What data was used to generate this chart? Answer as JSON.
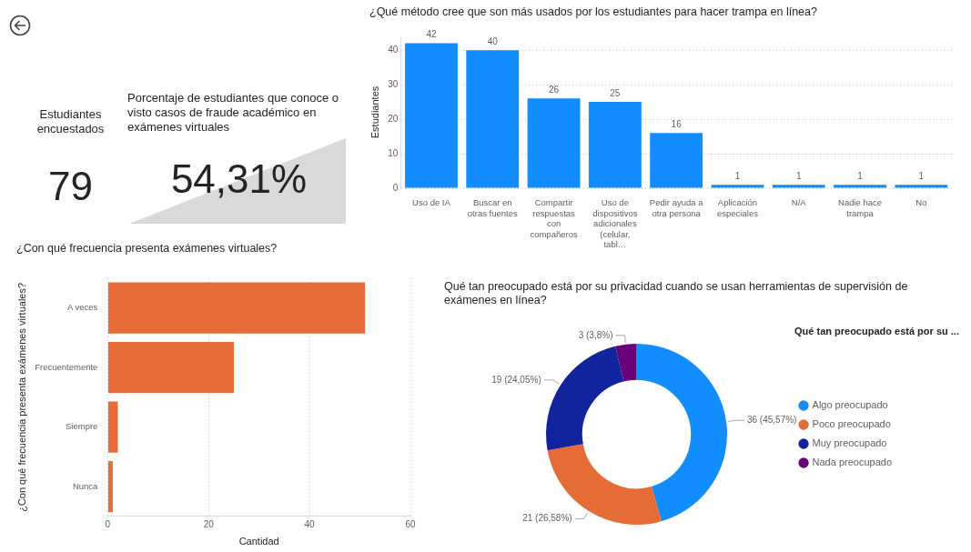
{
  "chart_data": [
    {
      "type": "other",
      "title": "Estudiantes encuestados",
      "values": [
        79
      ],
      "data_labels": true
    },
    {
      "type": "other",
      "title": "Porcentaje de estudiantes que conoce o visto casos de fraude académico en exámenes virtuales",
      "values": [
        54.31
      ],
      "value_labels": [
        "54,31%"
      ]
    },
    {
      "type": "bar",
      "title": "¿Qué método cree que son más usados por los estudiantes para hacer trampa en línea?",
      "ylabel": "Estudiantes",
      "categories": [
        "Uso de IA",
        "Buscar en otras fuentes",
        "Compartir respuestas con compañeros",
        "Uso de dispositivos adicionales (celular, tabl…",
        "Pedir ayuda a otra persona",
        "Aplicación especiales",
        "N/A",
        "Nadie hace trampa",
        "No"
      ],
      "values": [
        42,
        40,
        26,
        25,
        16,
        1,
        1,
        1,
        1
      ],
      "color": "#118dff",
      "ylim": [
        0,
        44
      ],
      "yticks": [
        0,
        10,
        20,
        30,
        40
      ],
      "grid": "y",
      "data_labels": true,
      "legend": false
    },
    {
      "type": "bar",
      "orientation": "horizontal",
      "title": "¿Con qué frecuencia presenta exámenes virtuales?",
      "xlabel": "Cantidad",
      "ylabel": "¿Con qué frecuencia presenta exámenes virtuales?",
      "categories": [
        "A veces",
        "Frecuentemente",
        "Siempre",
        "Nunca"
      ],
      "values": [
        51,
        25,
        2,
        1
      ],
      "color": "#e66c37",
      "xlim": [
        0,
        60
      ],
      "xticks": [
        0,
        20,
        40,
        60
      ],
      "grid": "x",
      "legend": false
    },
    {
      "type": "donut",
      "title": "Qué tan preocupado está por su privacidad cuando se usan herramientas de supervisión de exámenes en línea?",
      "legend_title": "Qué tan preocupado está por su ...",
      "legend": "right",
      "categories": [
        "Algo preocupado",
        "Poco preocupado",
        "Muy preocupado",
        "Nada preocupado"
      ],
      "values": [
        36,
        21,
        19,
        3
      ],
      "colors": [
        "#118dff",
        "#e66c37",
        "#12239e",
        "#6b007b"
      ],
      "value_labels": [
        "36 (45,57%)",
        "21 (26,58%)",
        "19 (24,05%)",
        "3 (3,8%)"
      ]
    }
  ]
}
